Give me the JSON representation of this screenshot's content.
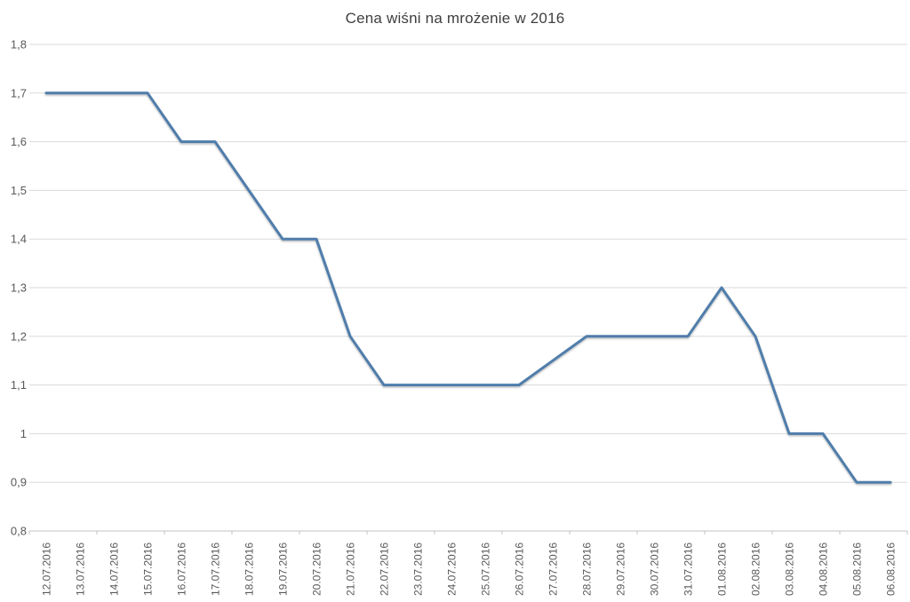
{
  "chart_data": {
    "type": "line",
    "title": "Cena wiśni na mrożenie w 2016",
    "x": [
      "12.07.2016",
      "13.07.2016",
      "14.07.2016",
      "15.07.2016",
      "16.07.2016",
      "17.07.2016",
      "18.07.2016",
      "19.07.2016",
      "20.07.2016",
      "21.07.2016",
      "22.07.2016",
      "23.07.2016",
      "24.07.2016",
      "25.07.2016",
      "26.07.2016",
      "27.07.2016",
      "28.07.2016",
      "29.07.2016",
      "30.07.2016",
      "31.07.2016",
      "01.08.2016",
      "02.08.2016",
      "03.08.2016",
      "04.08.2016",
      "05.08.2016",
      "06.08.2016"
    ],
    "series": [
      {
        "name": "Cena",
        "values": [
          1.7,
          1.7,
          1.7,
          1.7,
          1.6,
          1.6,
          1.5,
          1.4,
          1.4,
          1.2,
          1.1,
          1.1,
          1.1,
          1.1,
          1.1,
          1.15,
          1.2,
          1.2,
          1.2,
          1.2,
          1.3,
          1.2,
          1.0,
          1.0,
          0.9,
          0.9
        ]
      }
    ],
    "xlabel": "",
    "ylabel": "",
    "ylim": [
      0.8,
      1.8
    ],
    "ytick_step": 0.1,
    "ytick_labels": [
      "0,8",
      "0,9",
      "1",
      "1,1",
      "1,2",
      "1,3",
      "1,4",
      "1,5",
      "1,6",
      "1,7",
      "1,8"
    ],
    "grid": true,
    "legend_position": "none",
    "colors": {
      "line": "#4f7dab",
      "gridline": "#dadada",
      "axis_line": "#c3c3c3",
      "tick_mark": "#c3c3c3",
      "axis_label": "#595959",
      "title": "#3f3f3f",
      "background": "#ffffff"
    }
  }
}
